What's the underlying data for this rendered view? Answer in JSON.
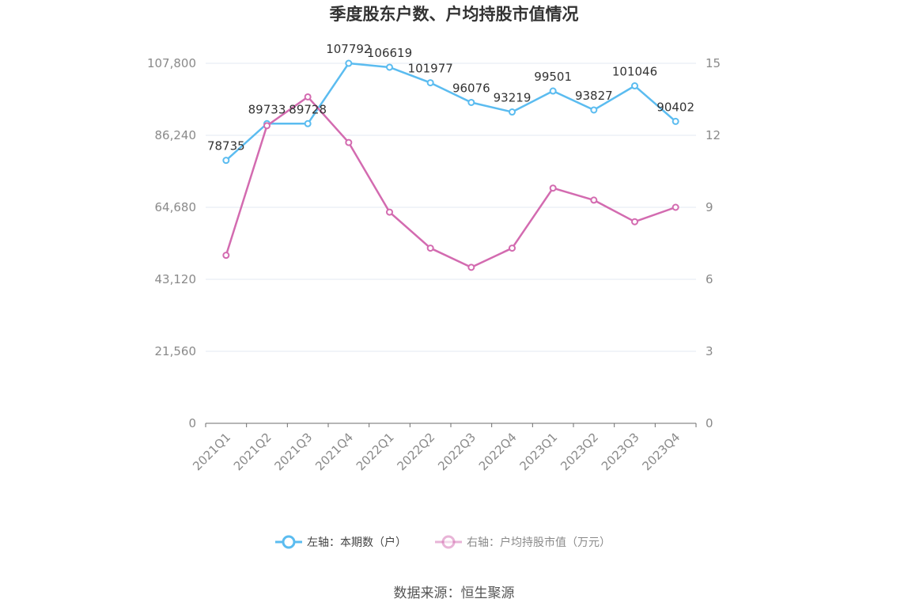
{
  "chart_data": {
    "type": "line",
    "title": "季度股东户数、户均持股市值情况",
    "categories": [
      "2021Q1",
      "2021Q2",
      "2021Q3",
      "2021Q4",
      "2022Q1",
      "2022Q2",
      "2022Q3",
      "2022Q4",
      "2023Q1",
      "2023Q2",
      "2023Q3",
      "2023Q4"
    ],
    "y_left": {
      "ticks": [
        "0",
        "21,560",
        "43,120",
        "64,680",
        "86,240",
        "107,800"
      ],
      "min": 0,
      "max": 107800
    },
    "y_right": {
      "ticks": [
        "0",
        "3",
        "6",
        "9",
        "12",
        "15"
      ],
      "min": 0,
      "max": 15
    },
    "series": [
      {
        "name": "左轴：本期数（户）",
        "axis": "left",
        "color": "#5bbcf0",
        "values": [
          78735,
          89733,
          89728,
          107792,
          106619,
          101977,
          96076,
          93219,
          99501,
          93827,
          101046,
          90402
        ],
        "labels": [
          "78735",
          "89733",
          "89728",
          "107792",
          "106619",
          "101977",
          "96076",
          "93219",
          "99501",
          "93827",
          "101046",
          "90402"
        ]
      },
      {
        "name": "右轴：户均持股市值（万元）",
        "axis": "right",
        "color": "#d36bb0",
        "values": [
          7.0,
          12.4,
          13.6,
          11.7,
          8.8,
          7.3,
          6.5,
          7.3,
          9.8,
          9.3,
          8.4,
          9.0
        ]
      }
    ],
    "grid": true,
    "legend_position": "bottom"
  },
  "source_text": "数据来源：恒生聚源"
}
